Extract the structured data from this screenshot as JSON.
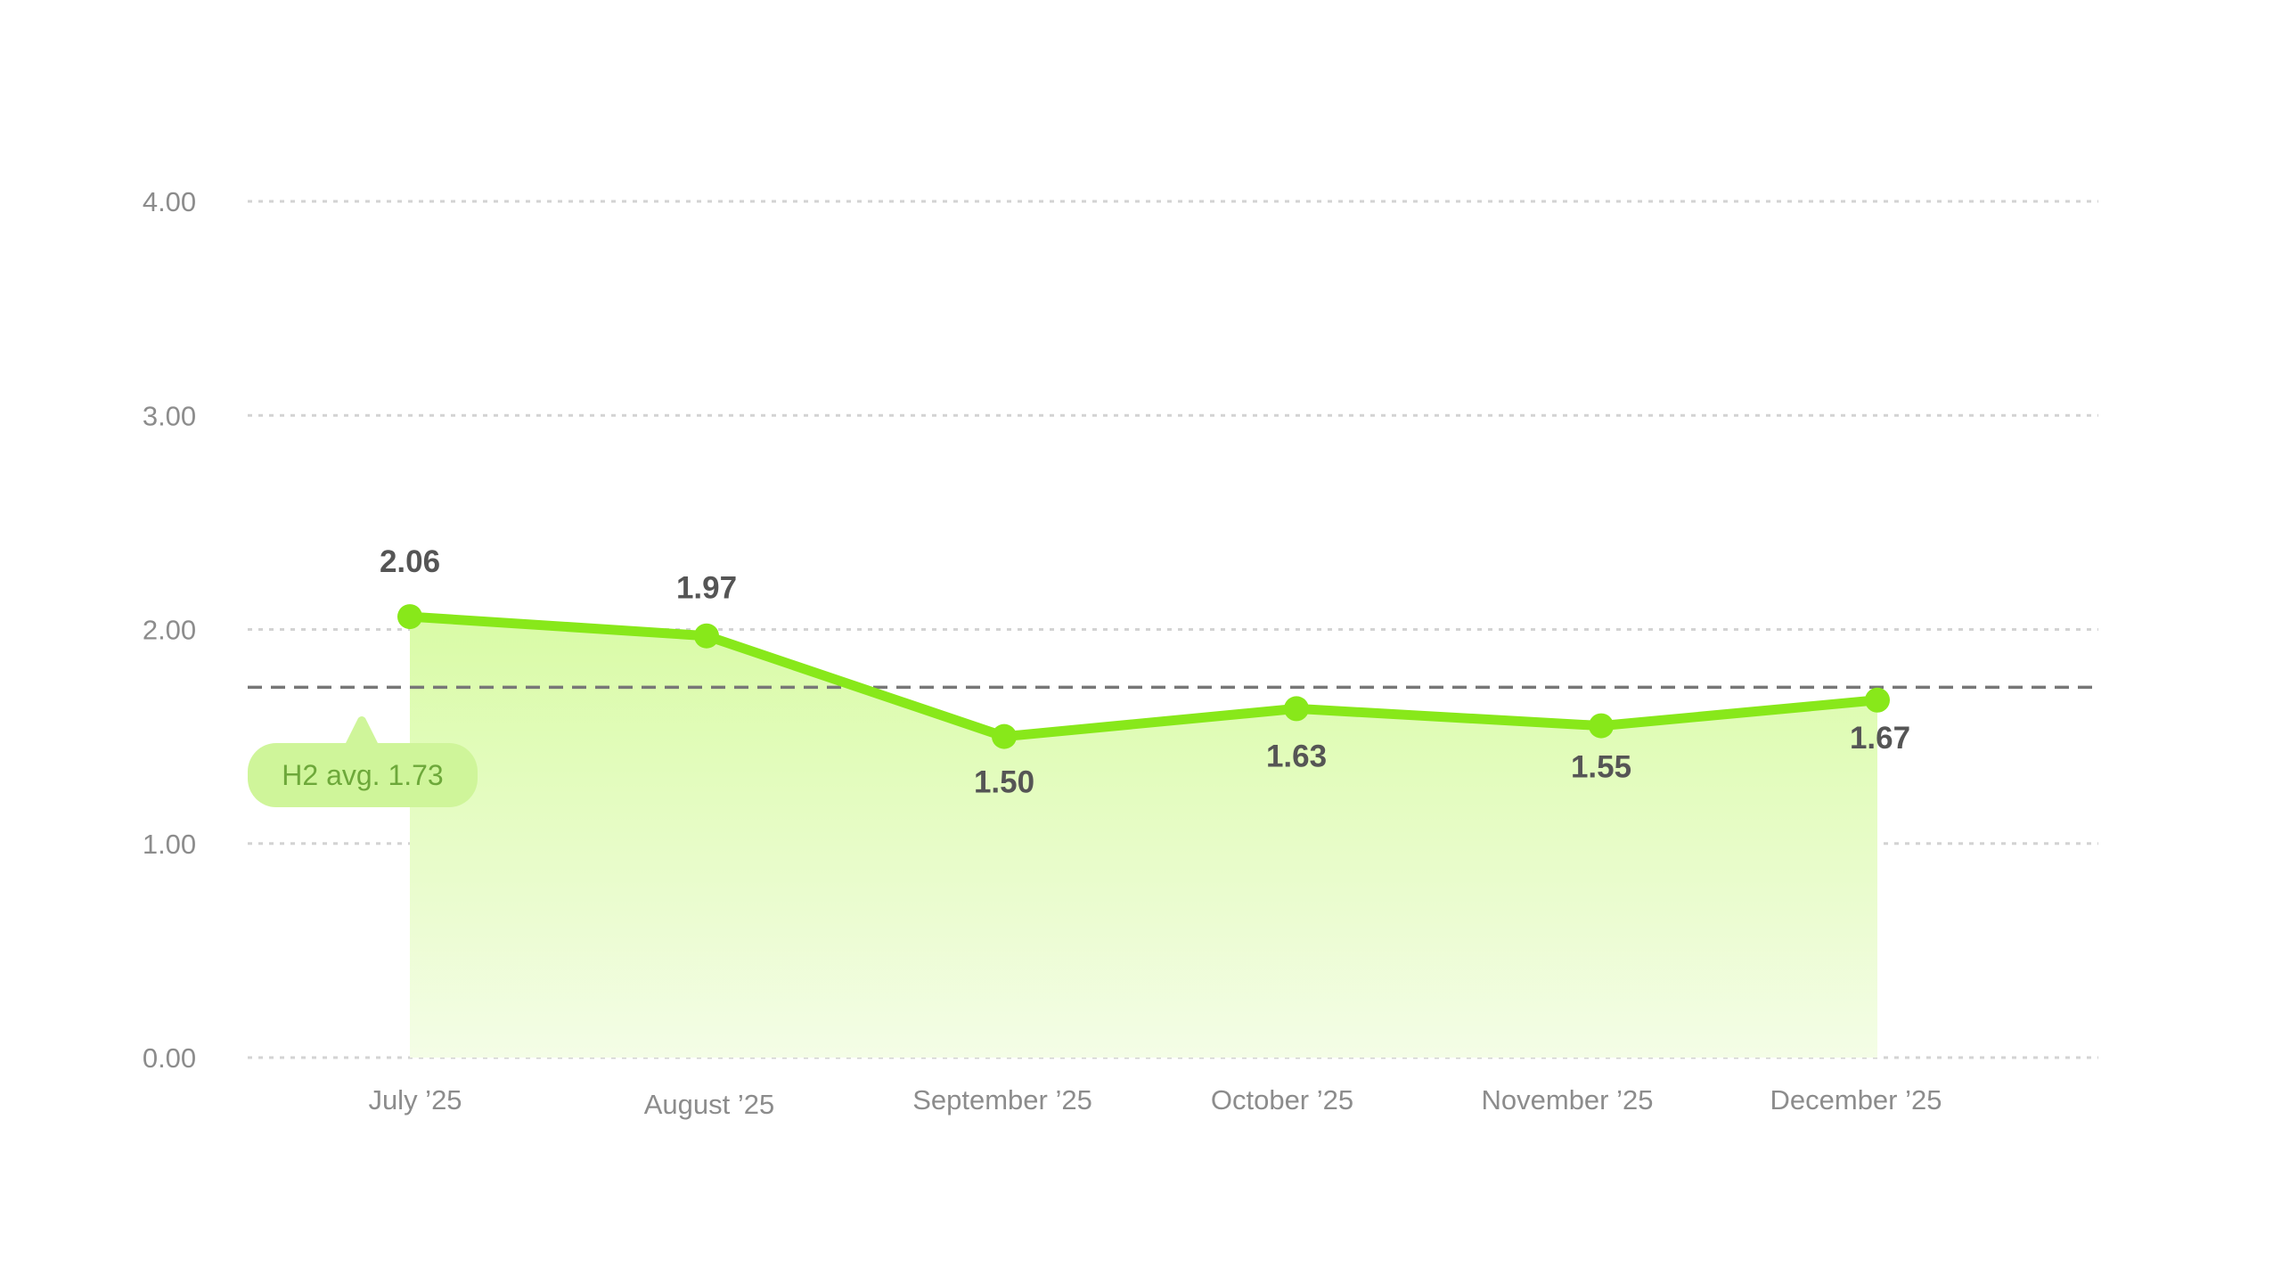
{
  "chart_data": {
    "type": "area",
    "categories": [
      "July ’25",
      "August ’25",
      "September ’25",
      "October ’25",
      "November ’25",
      "December ’25"
    ],
    "series": [
      {
        "values": [
          2.06,
          1.97,
          1.5,
          1.63,
          1.55,
          1.67
        ],
        "data_labels": [
          "2.06",
          "1.97",
          "1.50",
          "1.63",
          "1.55",
          "1.67"
        ]
      }
    ],
    "ylim": [
      0,
      4
    ],
    "yticks": [
      0,
      1,
      2,
      3,
      4
    ],
    "ytick_labels": [
      "0.00",
      "1.00",
      "2.00",
      "3.00",
      "4.00"
    ],
    "grid": true,
    "reference_line": {
      "value": 1.73,
      "label": "H2 avg. 1.73",
      "style": "dashed"
    },
    "title": "",
    "xlabel": "",
    "ylabel": ""
  },
  "colors": {
    "line": "#88e81a",
    "area_top": "#d9fba6",
    "area_bottom": "#f4fde6",
    "grid": "#d3d3d3",
    "reference_line": "#777777",
    "avg_badge_bg": "#cff59a",
    "avg_badge_text": "#6da83a",
    "tick_text": "#8c8c8c",
    "data_label_text": "#555555"
  }
}
